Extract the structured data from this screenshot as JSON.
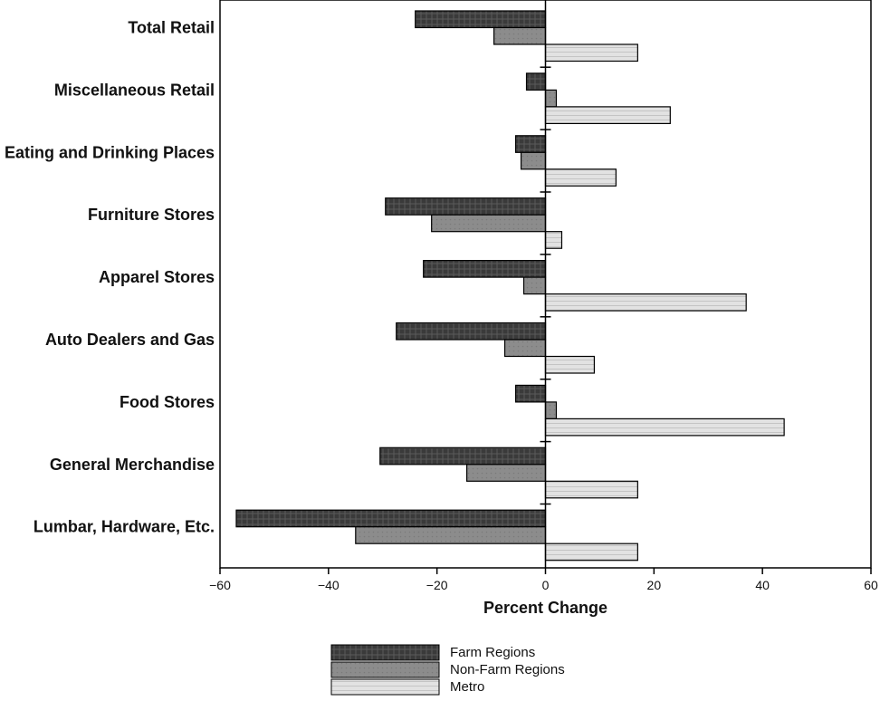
{
  "chart_data": {
    "type": "bar",
    "orientation": "horizontal",
    "categories": [
      "Total Retail",
      "Miscellaneous Retail",
      "Eating and Drinking Places",
      "Furniture Stores",
      "Apparel Stores",
      "Auto Dealers and Gas",
      "Food Stores",
      "General Merchandise",
      "Lumbar, Hardware, Etc."
    ],
    "series": [
      {
        "name": "Farm Regions",
        "color": "#3a3a3a",
        "values": [
          -24,
          -3.5,
          -5.5,
          -29.5,
          -22.5,
          -27.5,
          -5.5,
          -30.5,
          -57
        ]
      },
      {
        "name": "Non-Farm Regions",
        "color": "#8c8c8c",
        "values": [
          -9.5,
          2,
          -4.5,
          -21,
          -4,
          -7.5,
          2,
          -14.5,
          -35
        ]
      },
      {
        "name": "Metro",
        "color": "#dcdcdc",
        "values": [
          17,
          23,
          13,
          3,
          37,
          9,
          44,
          17,
          17
        ]
      }
    ],
    "xlabel": "Percent Change",
    "xlim": [
      -60,
      60
    ],
    "xticks": [
      -60,
      -40,
      -20,
      0,
      20,
      40,
      60
    ],
    "xtick_labels": [
      "−60",
      "−40",
      "−20",
      "0",
      "20",
      "40",
      "60"
    ],
    "legend_position": "bottom-center",
    "grid": false
  }
}
